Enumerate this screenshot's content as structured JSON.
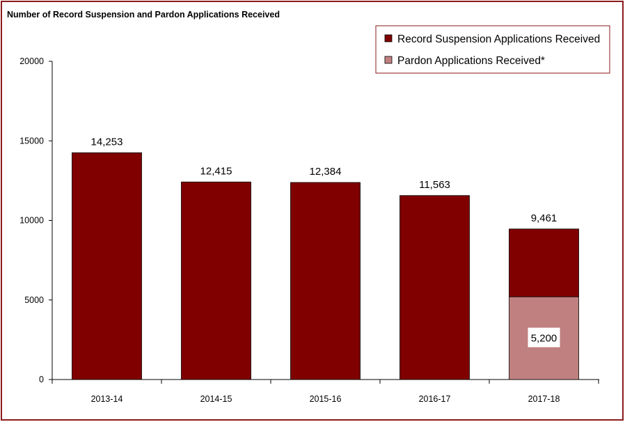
{
  "colors": {
    "frame": "#8b1a1a",
    "record_suspension": "#800000",
    "pardon": "#c08080",
    "axis": "#000000"
  },
  "chart_data": {
    "type": "bar",
    "stacked": true,
    "title": "Number of Record Suspension and Pardon Applications Received",
    "xlabel": "",
    "ylabel": "",
    "ylim": [
      0,
      20000
    ],
    "yticks": [
      0,
      5000,
      10000,
      15000,
      20000
    ],
    "ytick_labels": [
      "0",
      "5000",
      "10000",
      "15000",
      "20000"
    ],
    "categories": [
      "2013-14",
      "2014-15",
      "2015-16",
      "2016-17",
      "2017-18"
    ],
    "series": [
      {
        "name": "Record Suspension Applications Received",
        "values": [
          14253,
          12415,
          12384,
          11563,
          4261
        ]
      },
      {
        "name": "Pardon Applications Received*",
        "values": [
          0,
          0,
          0,
          0,
          5200
        ]
      }
    ],
    "total_labels": [
      "14,253",
      "12,415",
      "12,384",
      "11,563",
      "9,461"
    ],
    "segment_labels": [
      {
        "category": "2017-18",
        "series": "Pardon Applications Received*",
        "text": "5,200"
      }
    ],
    "legend_position": "top-right",
    "grid": false
  }
}
